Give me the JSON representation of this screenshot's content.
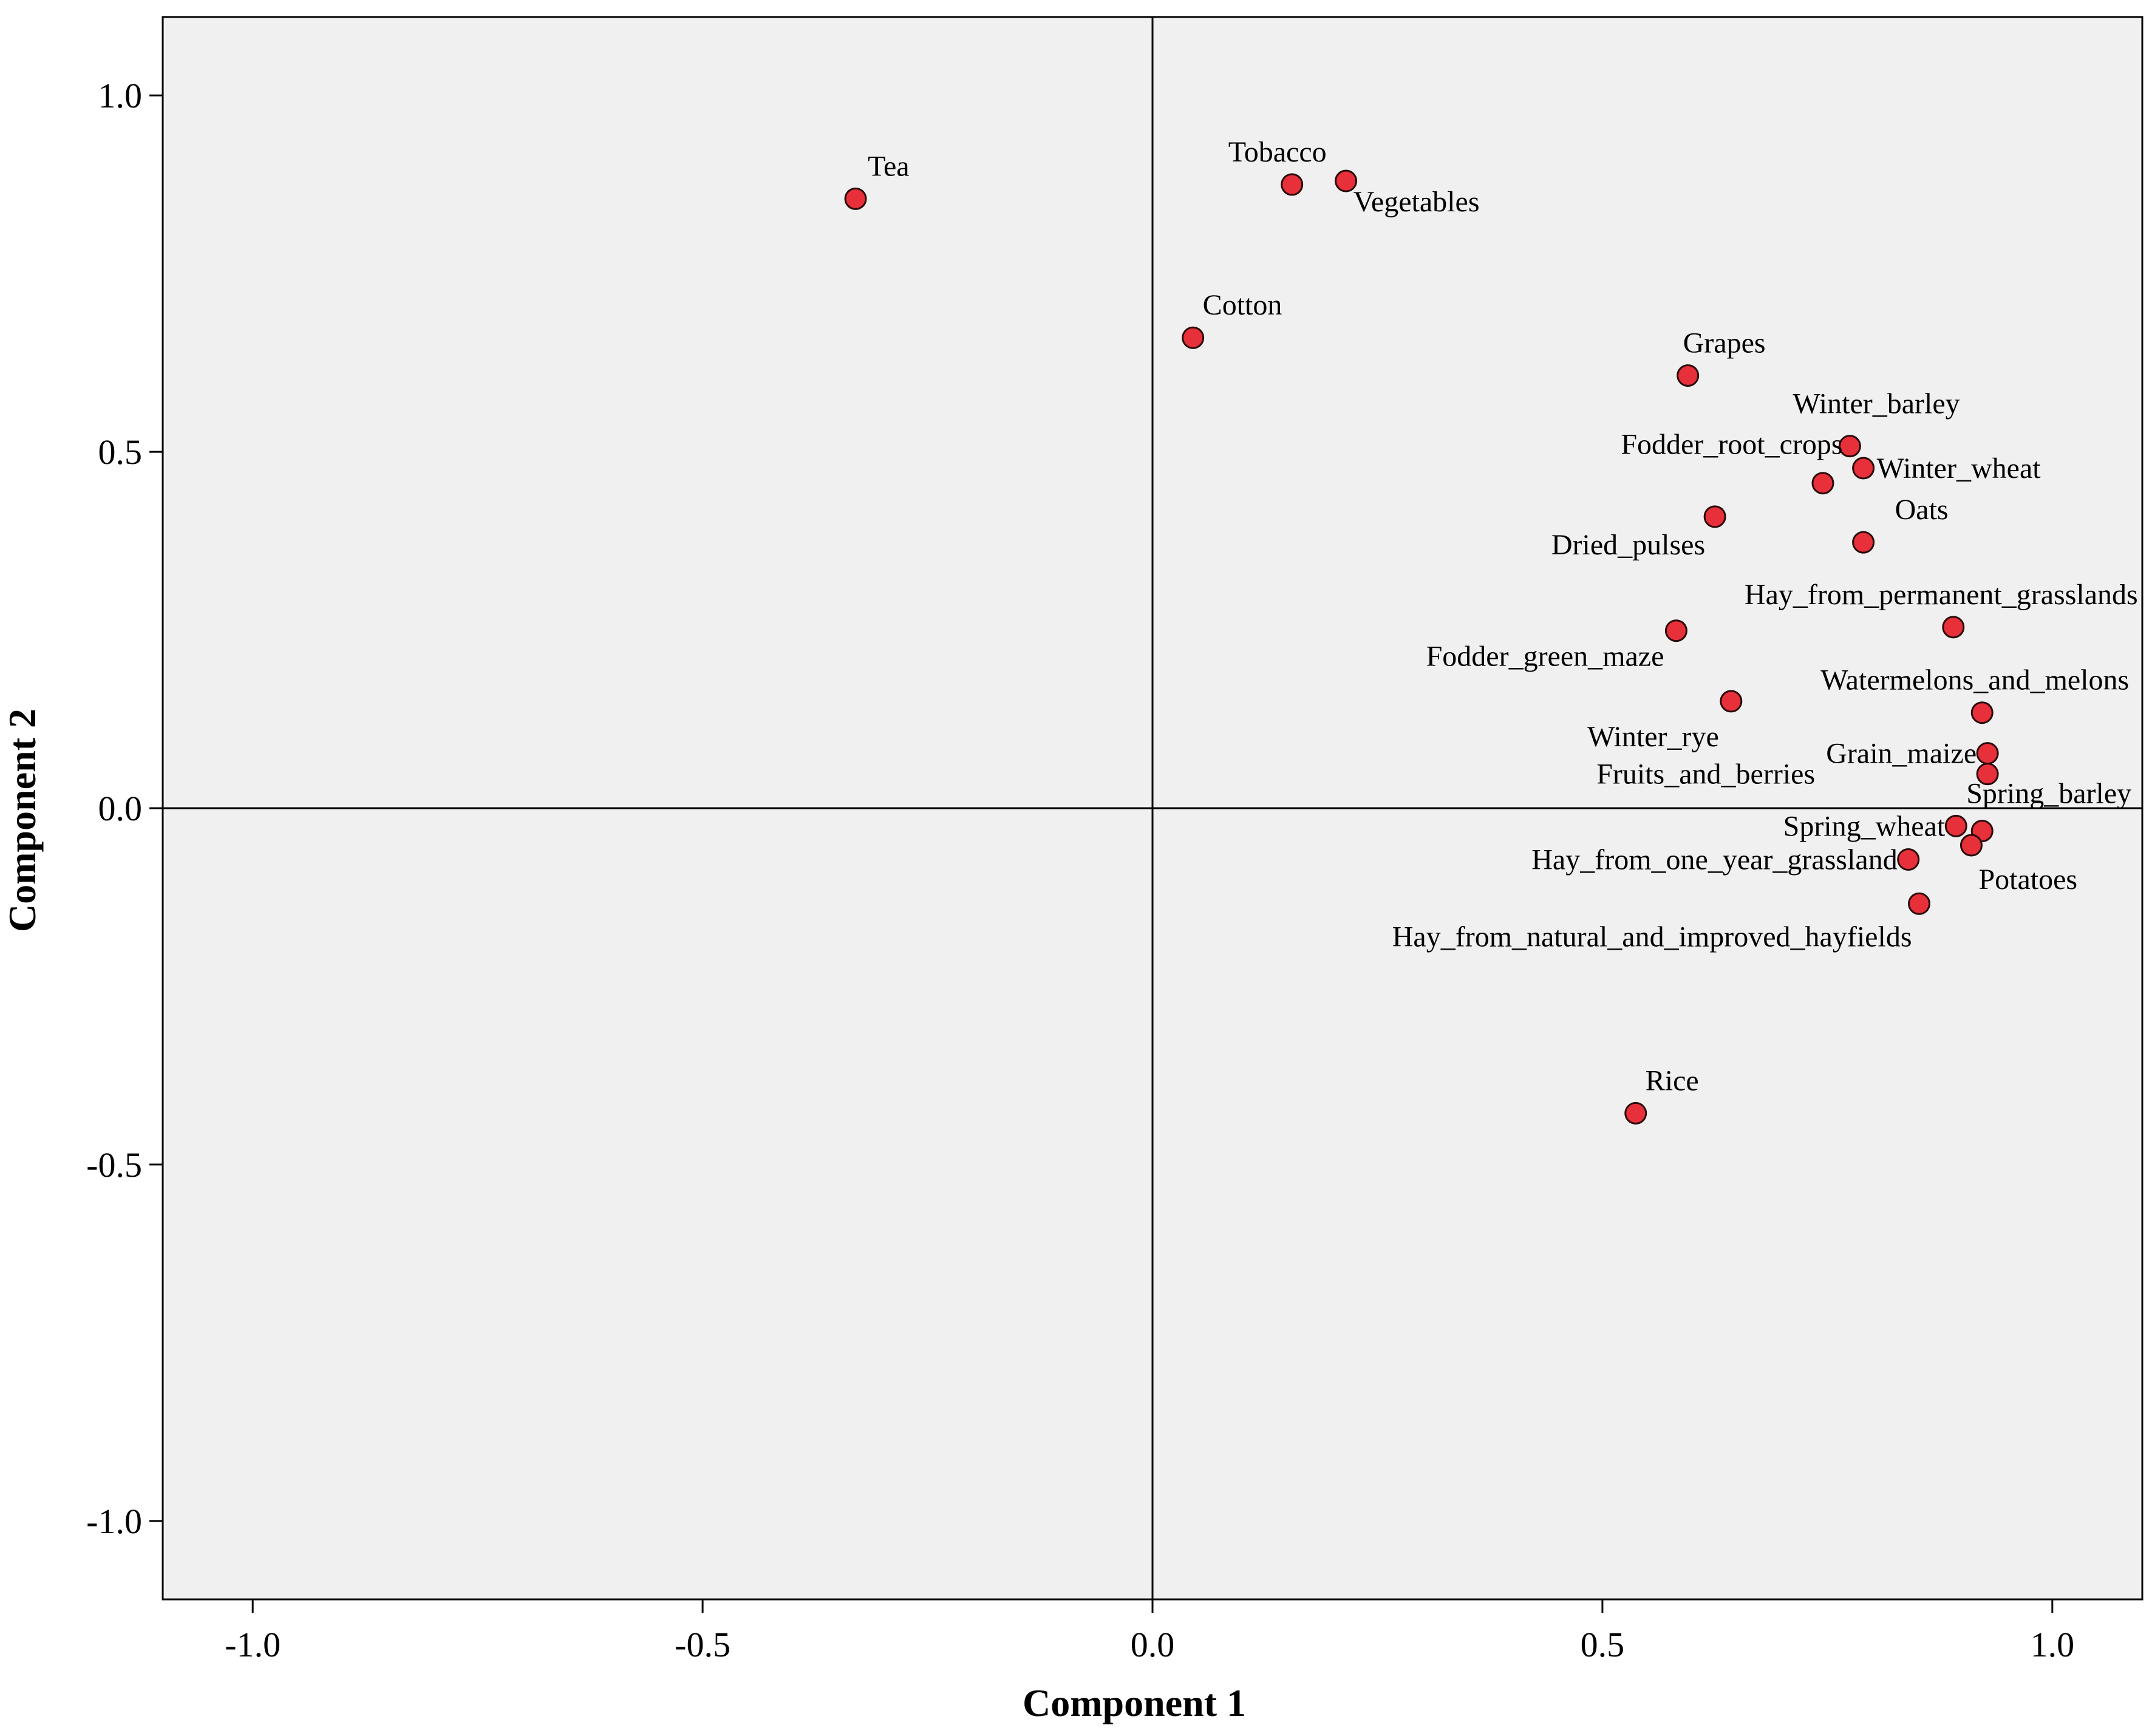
{
  "chart_data": {
    "type": "scatter",
    "title": "",
    "xlabel": "Component 1",
    "ylabel": "Component 2",
    "xlim": [
      -1.1,
      1.1
    ],
    "ylim": [
      -1.11,
      1.11
    ],
    "grid": false,
    "reference_lines": {
      "x": 0.0,
      "y": 0.0
    },
    "x_ticks": [
      {
        "value": -1.0,
        "label": "-1.0"
      },
      {
        "value": -0.5,
        "label": "-0.5"
      },
      {
        "value": 0.0,
        "label": "0.0"
      },
      {
        "value": 0.5,
        "label": "0.5"
      },
      {
        "value": 1.0,
        "label": "1.0"
      }
    ],
    "y_ticks": [
      {
        "value": 1.0,
        "label": "1.0"
      },
      {
        "value": 0.5,
        "label": "0.5"
      },
      {
        "value": 0.0,
        "label": "0.0"
      },
      {
        "value": -0.5,
        "label": "-0.5"
      },
      {
        "value": -1.0,
        "label": "-1.0"
      }
    ],
    "colors": {
      "plot_background": "#f0f0f0",
      "marker_fill": "#e8303a",
      "marker_edge": "#2a0a0a",
      "axis_line": "#000000"
    },
    "points": [
      {
        "label": "Tea",
        "x": -0.33,
        "y": 0.855,
        "label_pos": "above-right"
      },
      {
        "label": "Tobacco",
        "x": 0.155,
        "y": 0.875,
        "label_pos": "above"
      },
      {
        "label": "Vegetables",
        "x": 0.215,
        "y": 0.88,
        "label_pos": "below-right"
      },
      {
        "label": "Cotton",
        "x": 0.045,
        "y": 0.66,
        "label_pos": "above-right"
      },
      {
        "label": "Grapes",
        "x": 0.595,
        "y": 0.607,
        "label_pos": "above-right"
      },
      {
        "label": "Winter_barley",
        "x": 0.775,
        "y": 0.508,
        "label_pos": "above-right"
      },
      {
        "label": "Winter_wheat",
        "x": 0.79,
        "y": 0.477,
        "label_pos": "right"
      },
      {
        "label": "Fodder_root_crops",
        "x": 0.745,
        "y": 0.456,
        "label_pos": "above-left"
      },
      {
        "label": "Oats",
        "x": 0.79,
        "y": 0.373,
        "label_pos": "above-right"
      },
      {
        "label": "Dried_pulses",
        "x": 0.625,
        "y": 0.409,
        "label_pos": "below-left"
      },
      {
        "label": "Hay_from_permanent_grasslands",
        "x": 0.89,
        "y": 0.254,
        "label_pos": "above-left"
      },
      {
        "label": "Fodder_green_maze",
        "x": 0.582,
        "y": 0.249,
        "label_pos": "below-left"
      },
      {
        "label": "Watermelons_and_melons",
        "x": 0.922,
        "y": 0.134,
        "label_pos": "above-left"
      },
      {
        "label": "Winter_rye",
        "x": 0.643,
        "y": 0.15,
        "label_pos": "below-left"
      },
      {
        "label": "Grain_maize",
        "x": 0.928,
        "y": 0.077,
        "label_pos": "left"
      },
      {
        "label": "Fruits_and_berries",
        "x": 0.928,
        "y": 0.048,
        "label_pos": "far-left"
      },
      {
        "label": "Spring_barley",
        "x": 0.922,
        "y": -0.032,
        "label_pos": "above-right"
      },
      {
        "label": "Spring_wheat",
        "x": 0.893,
        "y": -0.025,
        "label_pos": "left"
      },
      {
        "label": "Potatoes",
        "x": 0.91,
        "y": -0.052,
        "label_pos": "below-right"
      },
      {
        "label": "Hay_from_one_year_grassland",
        "x": 0.84,
        "y": -0.072,
        "label_pos": "left"
      },
      {
        "label": "Hay_from_natural_and_improved_hayfields",
        "x": 0.852,
        "y": -0.134,
        "label_pos": "below-left"
      },
      {
        "label": "Rice",
        "x": 0.537,
        "y": -0.428,
        "label_pos": "above-right"
      }
    ]
  }
}
